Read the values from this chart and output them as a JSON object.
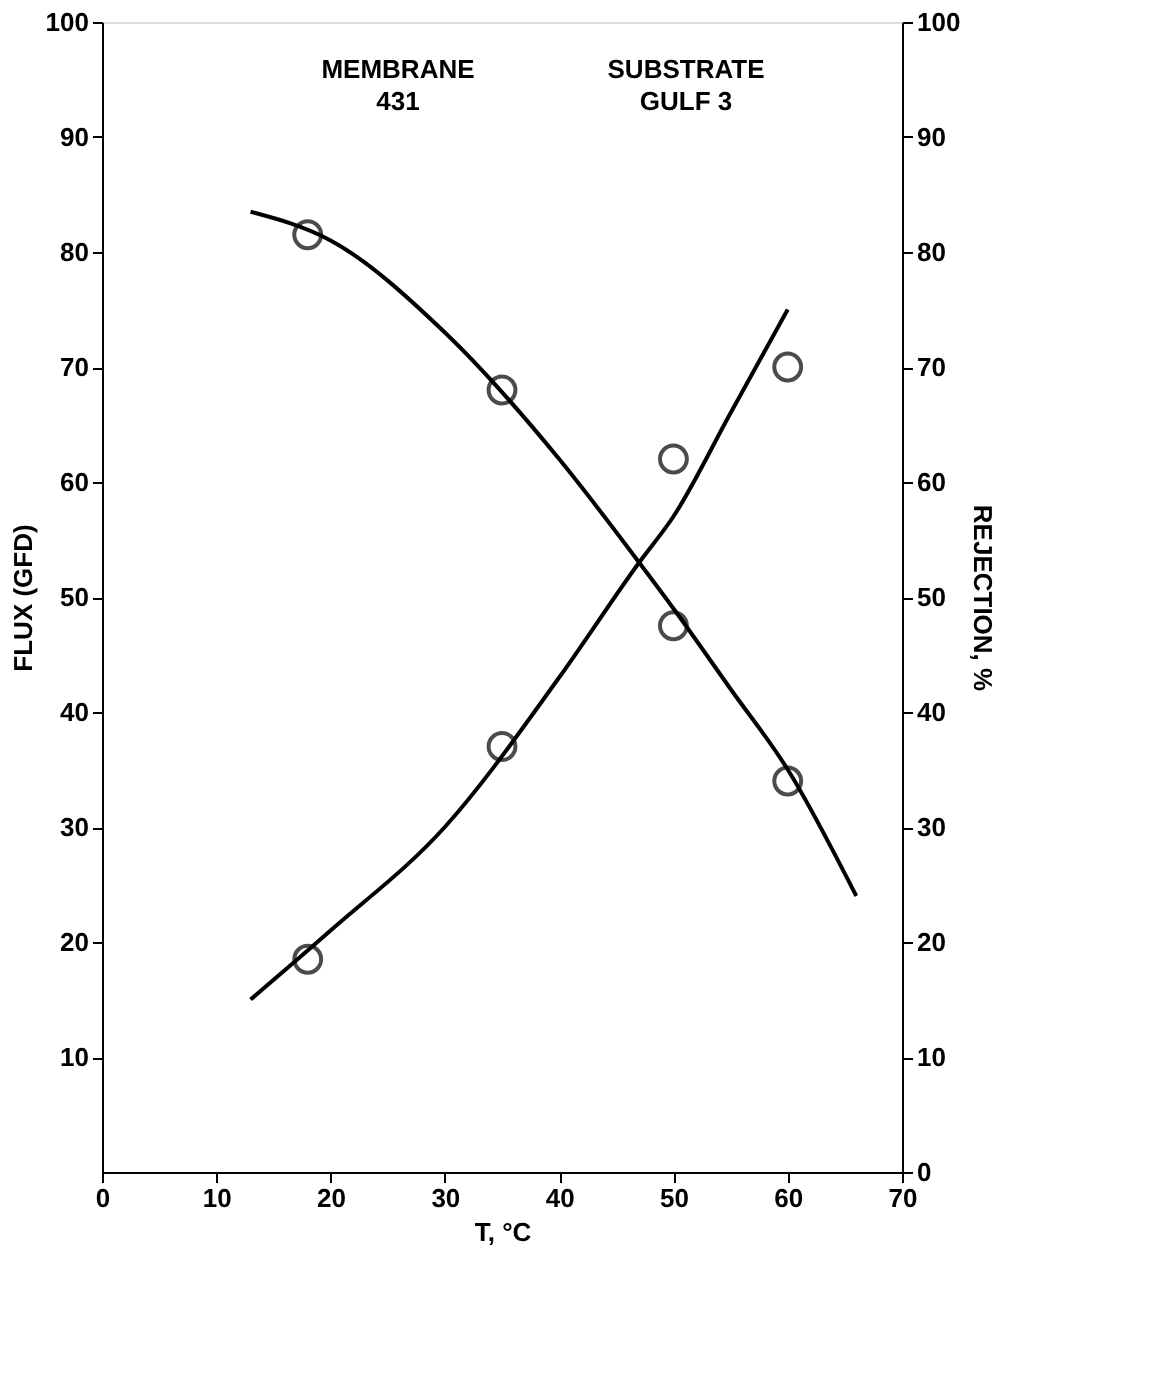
{
  "chart_data": {
    "type": "scatter",
    "xlabel": "T, °C",
    "ylabel": "FLUX (GFD)",
    "y2label": "REJECTION, %",
    "annotations": [
      "MEMBRANE\n431",
      "SUBSTRATE\nGULF 3"
    ],
    "xlim": [
      0,
      70
    ],
    "xticks": [
      0,
      10,
      20,
      30,
      40,
      50,
      60,
      70
    ],
    "ylim": [
      0,
      100
    ],
    "yticks": [
      10,
      20,
      30,
      40,
      50,
      60,
      70,
      80,
      90,
      100
    ],
    "y2lim": [
      0,
      100
    ],
    "y2ticks": [
      0,
      10,
      20,
      30,
      40,
      50,
      60,
      70,
      80,
      90,
      100
    ],
    "grid": false,
    "series": [
      {
        "color": "#000000",
        "x": [
          18,
          35,
          50,
          60
        ],
        "values": [
          18.5,
          37,
          62,
          70
        ]
      },
      {
        "type": "line",
        "line_style": "solid",
        "color": "#000000",
        "x": [
          13,
          20,
          30,
          40,
          47,
          50,
          55,
          60
        ],
        "values": [
          15,
          21,
          30,
          43,
          53,
          57,
          66,
          75
        ]
      },
      {
        "color": "#000000",
        "axis": "y2",
        "x": [
          18,
          35,
          50,
          60
        ],
        "values": [
          81.5,
          68,
          47.5,
          34
        ]
      },
      {
        "type": "line",
        "line_style": "solid",
        "color": "#000000",
        "axis": "y2",
        "x": [
          13,
          20,
          30,
          40,
          47,
          50,
          55,
          60,
          66
        ],
        "values": [
          83.5,
          81,
          73,
          62,
          53,
          49,
          42,
          35,
          24
        ]
      }
    ]
  }
}
